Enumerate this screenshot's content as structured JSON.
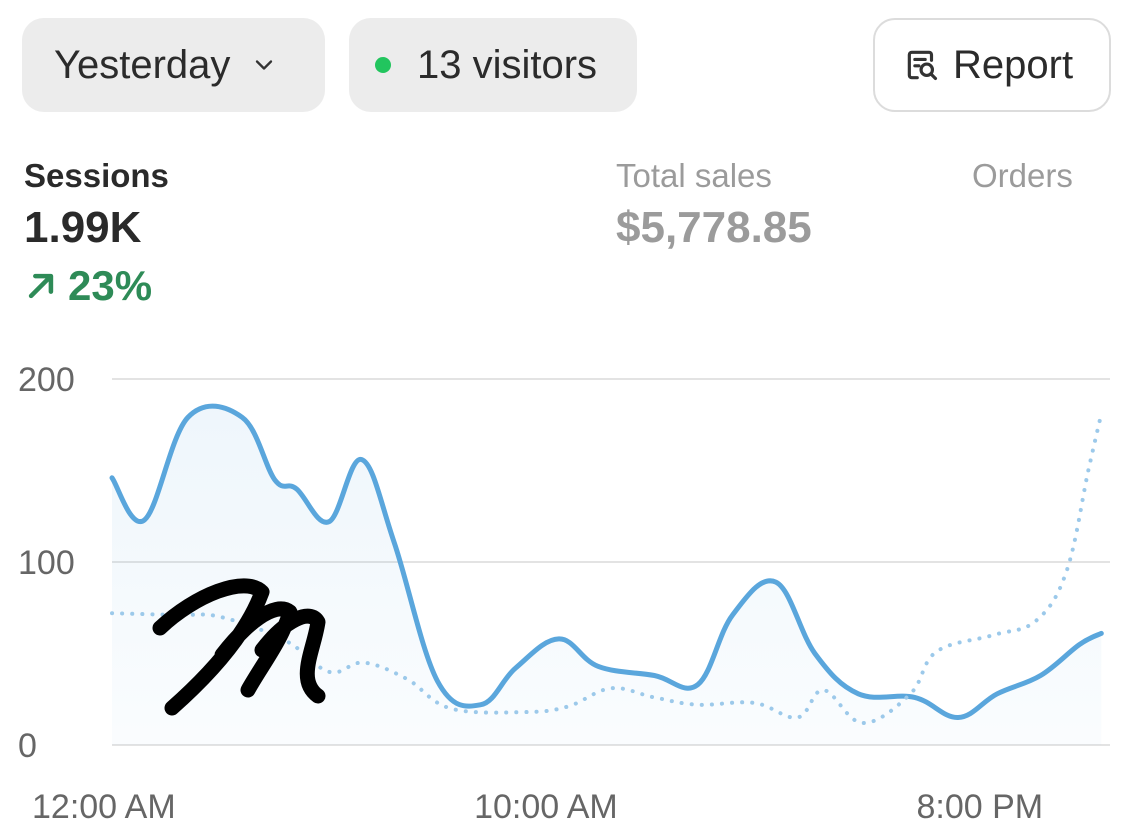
{
  "toolbar": {
    "date_range": "Yesterday",
    "visitors_text": "13 visitors",
    "visitors_dot_color": "#22c55e",
    "report_label": "Report"
  },
  "metrics": [
    {
      "label": "Sessions",
      "value": "1.99K",
      "change": "23%",
      "active": true
    },
    {
      "label": "Total sales",
      "value": "$5,778.85",
      "active": false
    },
    {
      "label": "Orders",
      "active": false
    }
  ],
  "colors": {
    "series_main": "#5aa6dc",
    "series_compare": "#9cc9ea",
    "positive": "#2e8b57",
    "grid": "#e3e3e3"
  },
  "chart_data": {
    "type": "line",
    "y_ticks": [
      0,
      100,
      200
    ],
    "ylim": [
      0,
      200
    ],
    "x_tick_labels": [
      "12:00 AM",
      "10:00 AM",
      "8:00 PM"
    ],
    "x_tick_hours": [
      0,
      10,
      20
    ],
    "xlim_hours": [
      0,
      23
    ],
    "grid": true,
    "series": [
      {
        "style": "solid",
        "area_fill": true,
        "points": [
          [
            0,
            146
          ],
          [
            0.75,
            123
          ],
          [
            1.75,
            179
          ],
          [
            3.0,
            179
          ],
          [
            3.75,
            145
          ],
          [
            4.25,
            140
          ],
          [
            5.0,
            122
          ],
          [
            5.75,
            156
          ],
          [
            6.5,
            111
          ],
          [
            7.5,
            35
          ],
          [
            8.5,
            22
          ],
          [
            9.3,
            42
          ],
          [
            10.3,
            58
          ],
          [
            11.2,
            43
          ],
          [
            12.5,
            38
          ],
          [
            13.5,
            33
          ],
          [
            14.3,
            71
          ],
          [
            15.3,
            89
          ],
          [
            16.2,
            50
          ],
          [
            17.2,
            28
          ],
          [
            18.5,
            26
          ],
          [
            19.5,
            15
          ],
          [
            20.4,
            28
          ],
          [
            21.4,
            38
          ],
          [
            22.3,
            55
          ],
          [
            22.8,
            61
          ]
        ]
      },
      {
        "style": "dotted",
        "area_fill": false,
        "points": [
          [
            0,
            72
          ],
          [
            1.5,
            71
          ],
          [
            2.5,
            70
          ],
          [
            4.0,
            57
          ],
          [
            5.0,
            40
          ],
          [
            5.8,
            45
          ],
          [
            6.8,
            36
          ],
          [
            7.8,
            20
          ],
          [
            9.5,
            18
          ],
          [
            10.5,
            21
          ],
          [
            11.5,
            31
          ],
          [
            12.5,
            26
          ],
          [
            13.5,
            22
          ],
          [
            14.8,
            23
          ],
          [
            15.8,
            15
          ],
          [
            16.4,
            30
          ],
          [
            17.3,
            12
          ],
          [
            18.4,
            28
          ],
          [
            19.0,
            51
          ],
          [
            20.3,
            60
          ],
          [
            21.3,
            68
          ],
          [
            22.0,
            95
          ],
          [
            22.5,
            150
          ],
          [
            22.8,
            181
          ]
        ]
      }
    ]
  }
}
